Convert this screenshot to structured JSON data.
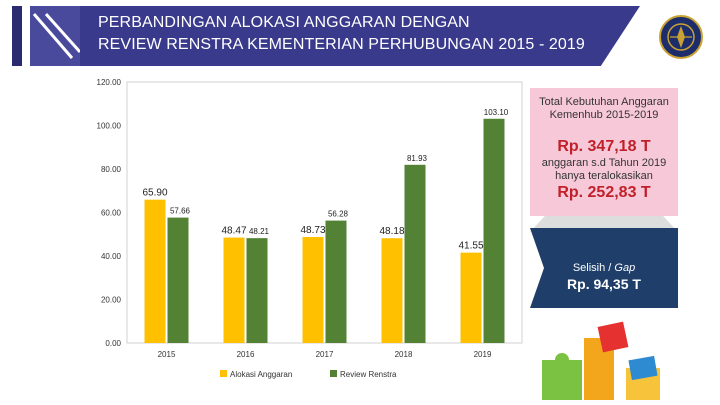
{
  "header": {
    "title_line1": "PERBANDINGAN ALOKASI ANGGARAN DENGAN",
    "title_line2": "REVIEW RENSTRA KEMENTERIAN PERHUBUNGAN 2015 - 2019"
  },
  "chart_data": {
    "type": "bar",
    "categories": [
      "2015",
      "2016",
      "2017",
      "2018",
      "2019"
    ],
    "series": [
      {
        "name": "Alokasi Anggaran",
        "color": "#ffc000",
        "values": [
          65.9,
          48.47,
          48.73,
          48.18,
          41.55
        ],
        "labels": [
          "65.90",
          "48.47",
          "48.73",
          "48.18",
          "41.55"
        ]
      },
      {
        "name": "Review Renstra",
        "color": "#548235",
        "values": [
          57.66,
          48.21,
          56.28,
          81.93,
          103.1
        ],
        "labels": [
          "57.66",
          "48.21",
          "56.28",
          "81.93",
          "103.10"
        ]
      }
    ],
    "ylim": [
      0,
      120
    ],
    "yticks": [
      "0.00",
      "20.00",
      "40.00",
      "60.00",
      "80.00",
      "100.00",
      "120.00"
    ],
    "grid": false,
    "legend": "bottom"
  },
  "side": {
    "total_label": "Total Kebutuhan Anggaran Kemenhub 2015-2019",
    "total_value": "Rp. 347,18 T",
    "alloc_label": "anggaran s.d Tahun 2019 hanya teralokasikan",
    "alloc_value": "Rp. 252,83 T",
    "gap_label_prefix": "Selisih / ",
    "gap_label_italic": "Gap",
    "gap_value": "Rp. 94,35 T",
    "colors": {
      "pink": "#f7c9d8",
      "navy": "#1f3f6a",
      "red": "#c0202a",
      "header": "#3a3a8c"
    }
  }
}
